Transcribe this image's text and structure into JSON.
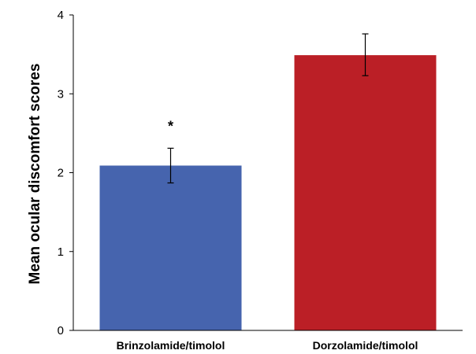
{
  "chart_data": {
    "type": "bar",
    "categories": [
      "Brinzolamide/timolol",
      "Dorzolamide/timolol"
    ],
    "values": [
      2.09,
      3.49
    ],
    "error_bars": [
      {
        "low": 1.87,
        "high": 2.31
      },
      {
        "low": 3.23,
        "high": 3.76
      }
    ],
    "colors": [
      "#4664AE",
      "#BB1F26"
    ],
    "annotations": [
      "*",
      ""
    ],
    "title": "",
    "xlabel": "",
    "ylabel": "Mean ocular discomfort scores",
    "ylim": [
      0,
      4
    ],
    "yticks": [
      "0",
      "1",
      "2",
      "3",
      "4"
    ],
    "grid": false,
    "legend": "none"
  }
}
